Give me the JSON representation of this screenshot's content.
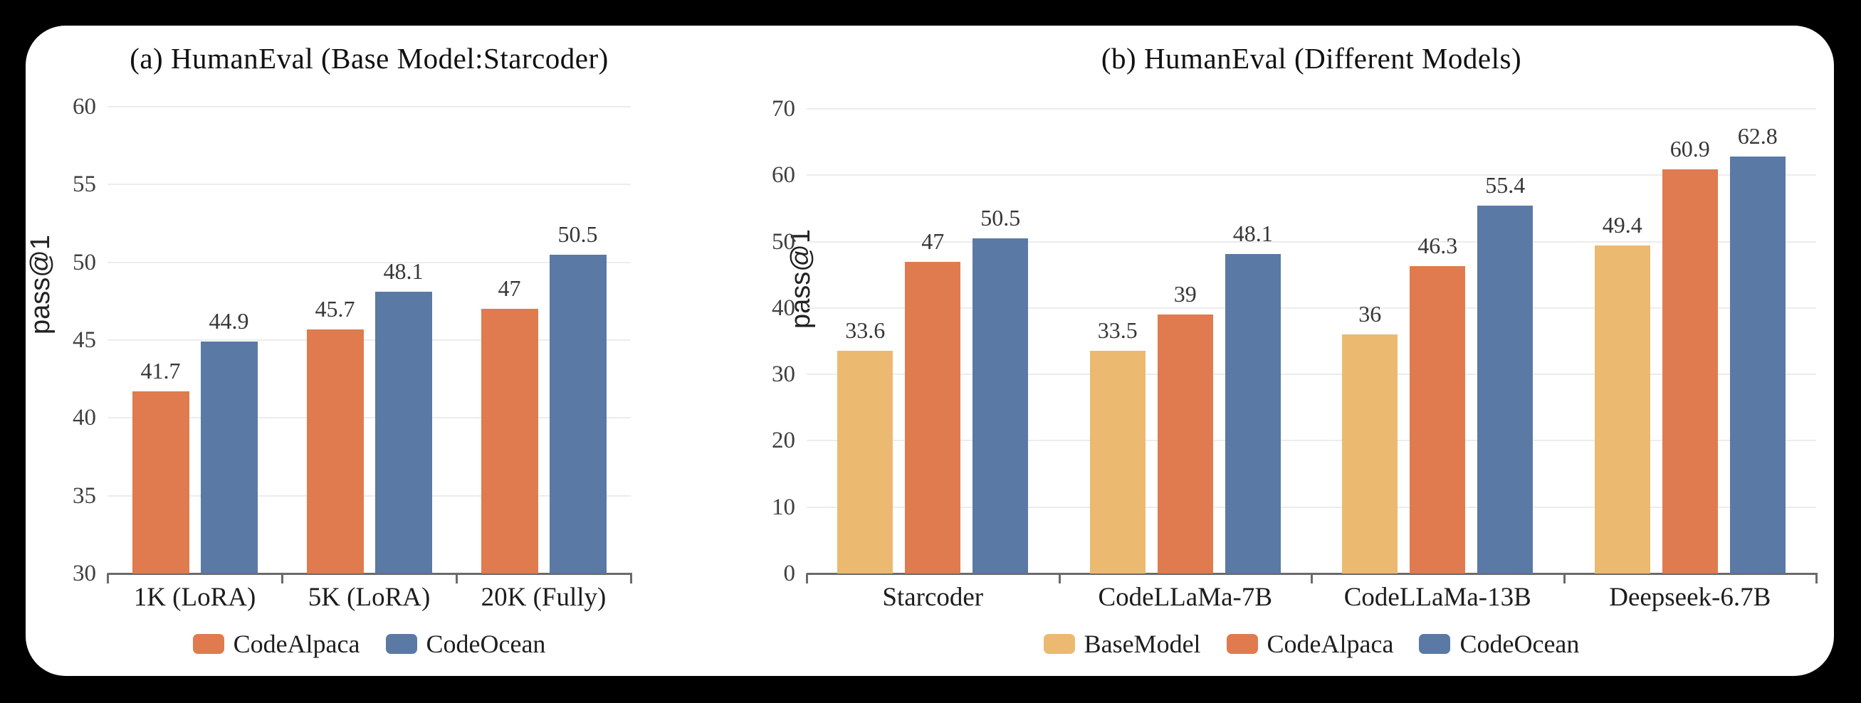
{
  "page": {
    "background_color": "#000000",
    "card_background_color": "#ffffff"
  },
  "colors": {
    "base_model": "#ebba70",
    "code_alpaca": "#e07b4f",
    "code_ocean": "#5a79a5",
    "gridline": "#ececec",
    "axis": "#6a6a6a"
  },
  "chart_data": [
    {
      "type": "bar",
      "title": "(a) HumanEval (Base Model:Starcoder)",
      "xlabel": "",
      "ylabel": "pass@1",
      "categories": [
        "1K (LoRA)",
        "5K (LoRA)",
        "20K (Fully)"
      ],
      "series": [
        {
          "name": "CodeAlpaca",
          "color": "#e07b4f",
          "values": [
            41.7,
            45.7,
            47
          ],
          "labels": [
            "41.7",
            "45.7",
            "47"
          ]
        },
        {
          "name": "CodeOcean",
          "color": "#5a79a5",
          "values": [
            44.9,
            48.1,
            50.5
          ],
          "labels": [
            "44.9",
            "48.1",
            "50.5"
          ]
        }
      ],
      "ylim": [
        30,
        60
      ],
      "ytick_step": 5,
      "yticks": [
        "30",
        "35",
        "40",
        "45",
        "50",
        "55",
        "60"
      ],
      "grid": true,
      "legend_position": "bottom"
    },
    {
      "type": "bar",
      "title": "(b) HumanEval (Different Models)",
      "xlabel": "",
      "ylabel": "pass@1",
      "categories": [
        "Starcoder",
        "CodeLLaMa-7B",
        "CodeLLaMa-13B",
        "Deepseek-6.7B"
      ],
      "series": [
        {
          "name": "BaseModel",
          "color": "#ebba70",
          "values": [
            33.6,
            33.5,
            36,
            49.4
          ],
          "labels": [
            "33.6",
            "33.5",
            "36",
            "49.4"
          ]
        },
        {
          "name": "CodeAlpaca",
          "color": "#e07b4f",
          "values": [
            47,
            39,
            46.3,
            60.9
          ],
          "labels": [
            "47",
            "39",
            "46.3",
            "60.9"
          ]
        },
        {
          "name": "CodeOcean",
          "color": "#5a79a5",
          "values": [
            50.5,
            48.1,
            55.4,
            62.8
          ],
          "labels": [
            "50.5",
            "48.1",
            "55.4",
            "62.8"
          ]
        }
      ],
      "ylim": [
        0,
        70
      ],
      "ytick_step": 10,
      "yticks": [
        "0",
        "10",
        "20",
        "30",
        "40",
        "50",
        "60",
        "70"
      ],
      "grid": true,
      "legend_position": "bottom"
    }
  ]
}
